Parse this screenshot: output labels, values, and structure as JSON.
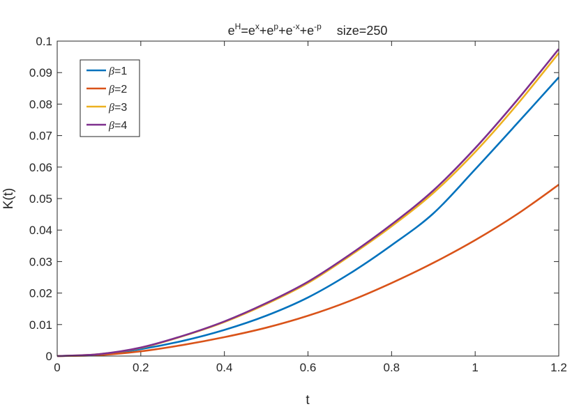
{
  "chart_data": {
    "type": "line",
    "title_parts": {
      "e1": "e",
      "s1": "H",
      "m1": "=e",
      "s2": "x",
      "m2": "+e",
      "s3": "p",
      "m3": "+e",
      "s4": "-x",
      "m4": "+e",
      "s5": "-p",
      "suffix": "size=250"
    },
    "xlabel": "t",
    "ylabel": "K(t)",
    "xlim": [
      0,
      1.2
    ],
    "ylim": [
      0,
      0.1
    ],
    "xticks": [
      0,
      0.2,
      0.4,
      0.6,
      0.8,
      1,
      1.2
    ],
    "xtick_labels": [
      "0",
      "0.2",
      "0.4",
      "0.6",
      "0.8",
      "1",
      "1.2"
    ],
    "yticks": [
      0,
      0.01,
      0.02,
      0.03,
      0.04,
      0.05,
      0.06,
      0.07,
      0.08,
      0.09,
      0.1
    ],
    "ytick_labels": [
      "0",
      "0.01",
      "0.02",
      "0.03",
      "0.04",
      "0.05",
      "0.06",
      "0.07",
      "0.08",
      "0.09",
      "0.1"
    ],
    "grid": false,
    "legend_position": "top-left",
    "x": [
      0,
      0.1,
      0.2,
      0.3,
      0.4,
      0.5,
      0.6,
      0.7,
      0.8,
      0.9,
      1.0,
      1.1,
      1.2
    ],
    "series": [
      {
        "name": "β=1",
        "symbol": "β",
        "label_suffix": "=1",
        "color": "#0072BD",
        "values": [
          0,
          0.0005,
          0.0022,
          0.0048,
          0.0083,
          0.0128,
          0.0186,
          0.0262,
          0.0352,
          0.0453,
          0.0593,
          0.0738,
          0.0885
        ]
      },
      {
        "name": "β=2",
        "symbol": "β",
        "label_suffix": "=2",
        "color": "#D95319",
        "values": [
          0,
          0.0003,
          0.0015,
          0.0035,
          0.006,
          0.009,
          0.0128,
          0.0175,
          0.0232,
          0.0296,
          0.0368,
          0.045,
          0.0544
        ]
      },
      {
        "name": "β=3",
        "symbol": "β",
        "label_suffix": "=3",
        "color": "#EDB120",
        "values": [
          0,
          0.0006,
          0.0026,
          0.0063,
          0.0108,
          0.0165,
          0.0232,
          0.0318,
          0.0412,
          0.0518,
          0.0648,
          0.0798,
          0.0962
        ]
      },
      {
        "name": "β=4",
        "symbol": "β",
        "label_suffix": "=4",
        "color": "#7E2F8E",
        "values": [
          0,
          0.0006,
          0.0027,
          0.0064,
          0.011,
          0.0168,
          0.0236,
          0.0322,
          0.0418,
          0.0526,
          0.066,
          0.0812,
          0.0975
        ]
      }
    ]
  }
}
